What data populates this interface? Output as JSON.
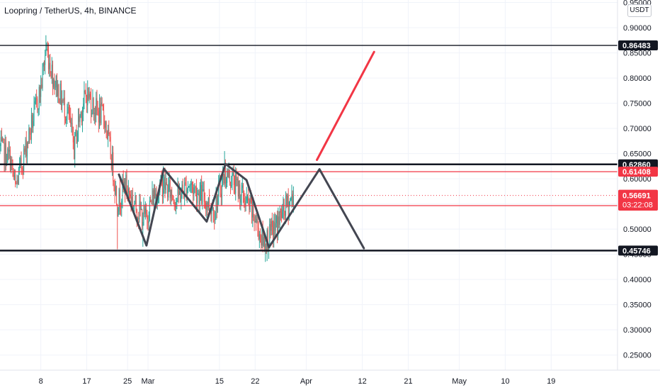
{
  "header": {
    "title": "Loopring / TetherUS, 4h, BINANCE",
    "currency": "USDT"
  },
  "chart_data": {
    "type": "candlestick",
    "ylim": [
      0.22,
      0.955
    ],
    "y_ticks": [
      0.95,
      0.9,
      0.85,
      0.8,
      0.75,
      0.7,
      0.65,
      0.6,
      0.55,
      0.5,
      0.45,
      0.4,
      0.35,
      0.3,
      0.25
    ],
    "y_tick_labels": [
      "0.95000",
      "0.90000",
      "0.85000",
      "0.80000",
      "0.75000",
      "0.70000",
      "0.65000",
      "0.60000",
      "0.55000",
      "0.50000",
      "0.45000",
      "0.40000",
      "0.35000",
      "0.30000",
      "0.25000"
    ],
    "x_range_days": [
      0,
      121
    ],
    "x_ticks": [
      {
        "label": "8",
        "day": 8
      },
      {
        "label": "17",
        "day": 17
      },
      {
        "label": "25",
        "day": 25
      },
      {
        "label": "Mar",
        "day": 29
      },
      {
        "label": "15",
        "day": 43
      },
      {
        "label": "22",
        "day": 50
      },
      {
        "label": "Apr",
        "day": 60
      },
      {
        "label": "12",
        "day": 71
      },
      {
        "label": "21",
        "day": 80
      },
      {
        "label": "May",
        "day": 90
      },
      {
        "label": "10",
        "day": 99
      },
      {
        "label": "19",
        "day": 108
      }
    ],
    "price_lines": [
      {
        "value": 0.86483,
        "label": "0.86483",
        "color": "#131722",
        "style": "black"
      },
      {
        "value": 0.6286,
        "label": "0.62860",
        "color": "#131722",
        "style": "black-bold"
      },
      {
        "value": 0.61408,
        "label": "0.61408",
        "color": "#f23645",
        "style": "red"
      },
      {
        "value": 0.54669,
        "label": "0.54669",
        "color": "#f23645",
        "style": "red"
      },
      {
        "value": 0.45746,
        "label": "0.45746",
        "color": "#131722",
        "style": "black-bold"
      }
    ],
    "last_price": {
      "value": 0.56691,
      "label": "0.56691",
      "countdown": "03:22:08",
      "color": "#f23645"
    },
    "drawn_lines": [
      {
        "color": "#434651",
        "points": [
          [
            23.3,
            0.6085
          ],
          [
            28.7,
            0.4675
          ],
          [
            32.1,
            0.62
          ],
          [
            40.5,
            0.515
          ],
          [
            44.2,
            0.6295
          ],
          [
            48.3,
            0.5975
          ],
          [
            52.7,
            0.464
          ],
          [
            62.6,
            0.619
          ],
          [
            71.3,
            0.462
          ]
        ]
      },
      {
        "color": "#f23645",
        "points": [
          [
            62.1,
            0.6375
          ],
          [
            73.3,
            0.852
          ]
        ]
      }
    ],
    "candles_note": "4h candles from day 0 to day 57.5",
    "candle_colors": {
      "up": "#26a69a",
      "down": "#ef5350"
    }
  }
}
